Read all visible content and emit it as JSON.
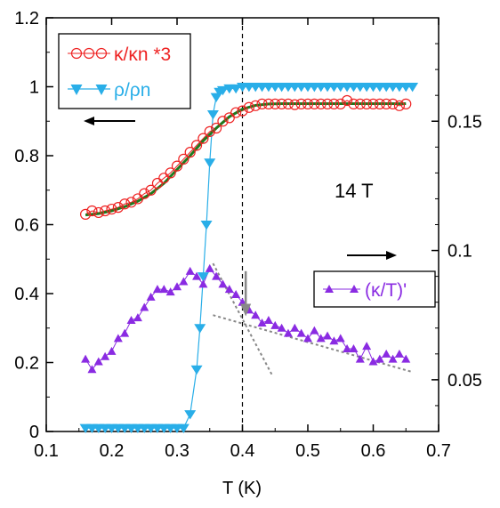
{
  "chart_data": {
    "type": "scatter",
    "xlabel": "T (K)",
    "xlim": [
      0.1,
      0.7
    ],
    "x_ticks": [
      "0.1",
      "0.2",
      "0.3",
      "0.4",
      "0.5",
      "0.6",
      "0.7"
    ],
    "ylim_left": [
      0,
      1.2
    ],
    "y_ticks_left": [
      "0",
      "0.2",
      "0.4",
      "0.6",
      "0.8",
      "1",
      "1.2"
    ],
    "ylim_right": [
      0.03,
      0.19
    ],
    "y_ticks_right": [
      "0.05",
      "0.1",
      "0.15"
    ],
    "field_annotation": "14 T",
    "vline_x": 0.4,
    "legend_left": {
      "kappa_label": "κ/κn *3",
      "rho_label": "ρ/ρn"
    },
    "legend_right": {
      "deriv_label": "(κ/T)'"
    },
    "colors": {
      "kappa": "#ee2222",
      "rho": "#29aee8",
      "deriv": "#8a2be2",
      "fit": "#1e7a1e",
      "guides": "#888888"
    },
    "series": [
      {
        "name": "κ/κn *3",
        "axis": "left",
        "marker": "open-circle",
        "x": [
          0.16,
          0.17,
          0.18,
          0.19,
          0.2,
          0.21,
          0.22,
          0.23,
          0.24,
          0.25,
          0.26,
          0.27,
          0.28,
          0.29,
          0.3,
          0.31,
          0.32,
          0.33,
          0.34,
          0.35,
          0.36,
          0.37,
          0.38,
          0.39,
          0.4,
          0.41,
          0.42,
          0.43,
          0.44,
          0.45,
          0.46,
          0.47,
          0.48,
          0.49,
          0.5,
          0.51,
          0.52,
          0.53,
          0.54,
          0.55,
          0.56,
          0.57,
          0.58,
          0.59,
          0.6,
          0.61,
          0.62,
          0.63,
          0.64,
          0.65
        ],
        "y": [
          0.63,
          0.64,
          0.635,
          0.64,
          0.645,
          0.65,
          0.66,
          0.665,
          0.675,
          0.69,
          0.7,
          0.72,
          0.735,
          0.75,
          0.77,
          0.79,
          0.81,
          0.83,
          0.85,
          0.87,
          0.88,
          0.9,
          0.91,
          0.925,
          0.93,
          0.94,
          0.945,
          0.95,
          0.95,
          0.95,
          0.95,
          0.95,
          0.948,
          0.95,
          0.95,
          0.95,
          0.95,
          0.95,
          0.95,
          0.95,
          0.96,
          0.95,
          0.95,
          0.95,
          0.95,
          0.95,
          0.95,
          0.95,
          0.945,
          0.95
        ]
      },
      {
        "name": "ρ/ρn",
        "axis": "left",
        "marker": "down-triangle",
        "x": [
          0.16,
          0.17,
          0.18,
          0.19,
          0.2,
          0.21,
          0.22,
          0.23,
          0.24,
          0.25,
          0.26,
          0.27,
          0.28,
          0.29,
          0.3,
          0.31,
          0.32,
          0.33,
          0.335,
          0.34,
          0.345,
          0.35,
          0.355,
          0.36,
          0.365,
          0.37,
          0.38,
          0.39,
          0.4,
          0.41,
          0.42,
          0.43,
          0.44,
          0.45,
          0.46,
          0.47,
          0.48,
          0.49,
          0.5,
          0.51,
          0.52,
          0.53,
          0.54,
          0.55,
          0.56,
          0.57,
          0.58,
          0.59,
          0.6,
          0.61,
          0.62,
          0.63,
          0.64,
          0.65,
          0.66
        ],
        "y": [
          0.01,
          0.01,
          0.01,
          0.01,
          0.01,
          0.01,
          0.01,
          0.01,
          0.01,
          0.01,
          0.01,
          0.01,
          0.01,
          0.01,
          0.01,
          0.01,
          0.05,
          0.18,
          0.3,
          0.45,
          0.6,
          0.78,
          0.92,
          0.97,
          0.985,
          0.99,
          0.995,
          0.995,
          1.0,
          1.0,
          1.0,
          1.0,
          1.0,
          1.0,
          1.0,
          1.0,
          1.0,
          1.0,
          1.0,
          1.0,
          1.0,
          1.0,
          1.0,
          1.0,
          1.0,
          1.0,
          1.0,
          1.0,
          1.0,
          1.0,
          1.0,
          1.0,
          1.0,
          1.0,
          1.0
        ]
      },
      {
        "name": "(κ/T)'",
        "axis": "right",
        "marker": "up-triangle",
        "x": [
          0.16,
          0.17,
          0.18,
          0.19,
          0.2,
          0.21,
          0.22,
          0.23,
          0.24,
          0.25,
          0.26,
          0.27,
          0.28,
          0.29,
          0.3,
          0.31,
          0.32,
          0.33,
          0.34,
          0.35,
          0.36,
          0.37,
          0.38,
          0.39,
          0.4,
          0.41,
          0.42,
          0.43,
          0.44,
          0.45,
          0.46,
          0.47,
          0.48,
          0.49,
          0.5,
          0.51,
          0.52,
          0.53,
          0.54,
          0.55,
          0.56,
          0.57,
          0.58,
          0.59,
          0.6,
          0.61,
          0.62,
          0.63,
          0.64,
          0.65
        ],
        "y": [
          0.058,
          0.054,
          0.057,
          0.059,
          0.061,
          0.066,
          0.068,
          0.073,
          0.074,
          0.078,
          0.082,
          0.085,
          0.085,
          0.084,
          0.086,
          0.088,
          0.092,
          0.09,
          0.087,
          0.093,
          0.09,
          0.087,
          0.085,
          0.083,
          0.08,
          0.077,
          0.075,
          0.072,
          0.073,
          0.071,
          0.07,
          0.068,
          0.07,
          0.068,
          0.066,
          0.069,
          0.066,
          0.067,
          0.065,
          0.066,
          0.062,
          0.062,
          0.058,
          0.063,
          0.057,
          0.058,
          0.06,
          0.058,
          0.06,
          0.058
        ]
      }
    ],
    "fit_curve": {
      "x": [
        0.16,
        0.18,
        0.2,
        0.22,
        0.24,
        0.26,
        0.28,
        0.3,
        0.32,
        0.34,
        0.36,
        0.38,
        0.4,
        0.42,
        0.44,
        0.46,
        0.5,
        0.55,
        0.6,
        0.65
      ],
      "y": [
        0.628,
        0.632,
        0.64,
        0.652,
        0.668,
        0.69,
        0.72,
        0.76,
        0.8,
        0.843,
        0.88,
        0.913,
        0.935,
        0.946,
        0.95,
        0.951,
        0.951,
        0.951,
        0.951,
        0.951
      ]
    },
    "guide_lines": [
      {
        "x": [
          0.355,
          0.445
        ],
        "y_right": [
          0.095,
          0.052
        ]
      },
      {
        "x": [
          0.355,
          0.66
        ],
        "y_right": [
          0.075,
          0.053
        ]
      }
    ],
    "annotation_arrow": {
      "x": 0.405,
      "y_right_from": 0.092,
      "y_right_to": 0.078
    }
  }
}
